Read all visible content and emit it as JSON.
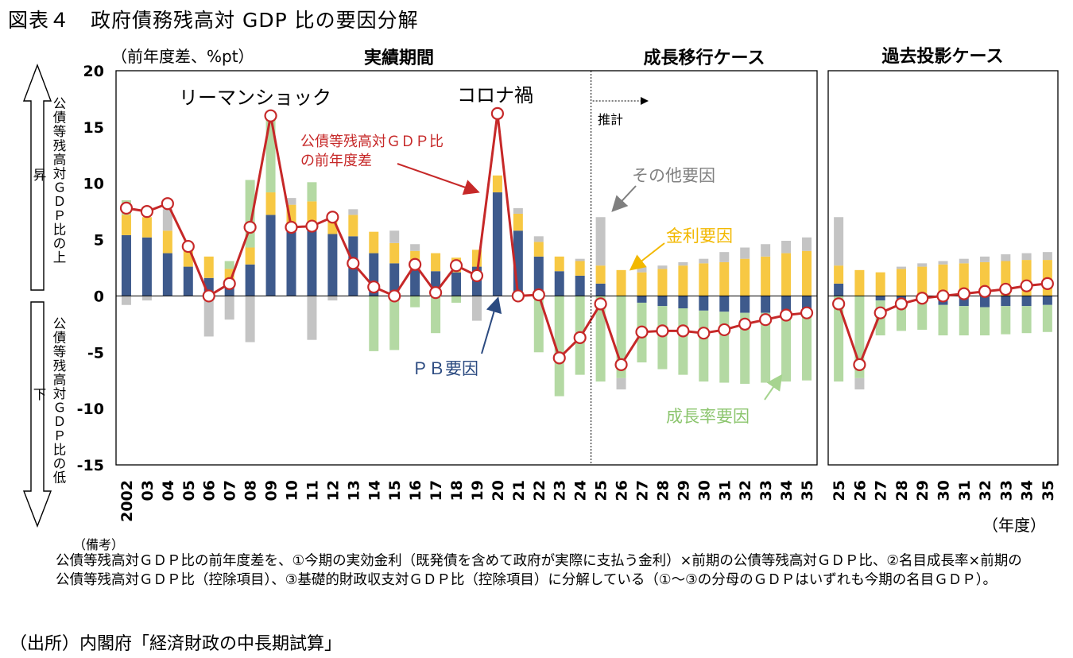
{
  "title": "図表４　政府債務残高対 GDP 比の要因分解",
  "notes_heading": "（備考）",
  "notes": "公債等残高対ＧＤＰ比の前年度差を、①今期の実効金利（既発債を含めて政府が実際に支払う金利）×前期の公債等残高対ＧＤＰ比、②名目成長率×前期の公債等残高対ＧＤＰ比（控除項目）、③基礎的財政収支対ＧＤＰ比（控除項目）に分解している（①～③の分母のＧＤＰはいずれも今期の名目ＧＤＰ）。",
  "source": "（出所）内閣府「経済財政の中長期試算」",
  "colors": {
    "pb": "#3e5a8c",
    "interest": "#f7c843",
    "growth": "#b4d9a3",
    "other": "#c4c4c4",
    "line": "#c62828",
    "annotation_gray": "#7f7f7f"
  },
  "chart_data": {
    "type": "bar",
    "stacked": true,
    "ylabel": "（前年度差、%pt）",
    "xlabel": "（年度）",
    "ylim": [
      -15,
      20
    ],
    "yticks": [
      20,
      15,
      10,
      5,
      0,
      -5,
      -10,
      -15
    ],
    "left_axis_labels": {
      "up": "公債等残高対ＧＤＰ比の上昇",
      "down": "公債等残高対ＧＤＰ比の低下"
    },
    "panels": [
      {
        "categories": [
          "2002",
          "03",
          "04",
          "05",
          "06",
          "07",
          "08",
          "09",
          "10",
          "11",
          "12",
          "13",
          "14",
          "15",
          "16",
          "17",
          "18",
          "19",
          "20",
          "21",
          "22",
          "23",
          "24",
          "25",
          "26",
          "27",
          "28",
          "29",
          "30",
          "31",
          "32",
          "33",
          "34",
          "35"
        ],
        "section_titles": [
          "実績期間",
          "成長移行ケース"
        ],
        "estimate_label": "推計",
        "series": [
          {
            "name": "ＰＢ要因",
            "values": [
              5.4,
              5.2,
              3.8,
              2.6,
              1.6,
              0.9,
              2.8,
              7.2,
              6.2,
              6.1,
              5.5,
              5.3,
              3.8,
              2.9,
              2.3,
              2.2,
              2.1,
              2.6,
              9.2,
              5.8,
              3.5,
              2.2,
              1.8,
              1.1,
              0.0,
              -0.6,
              -0.9,
              -1.1,
              -1.3,
              -1.4,
              -1.5,
              -1.5,
              -1.5,
              -1.4
            ]
          },
          {
            "name": "金利要因",
            "values": [
              1.8,
              1.8,
              2.0,
              1.4,
              1.9,
              1.5,
              1.5,
              2.0,
              1.9,
              2.3,
              1.8,
              1.9,
              1.9,
              1.8,
              1.7,
              1.6,
              1.3,
              1.5,
              1.5,
              1.5,
              1.3,
              1.3,
              1.3,
              1.6,
              2.3,
              2.1,
              2.4,
              2.7,
              2.9,
              3.0,
              3.3,
              3.5,
              3.8,
              4.0
            ]
          },
          {
            "name": "成長率要因",
            "values": [
              1.3,
              0.0,
              0.0,
              0.0,
              0.0,
              0.7,
              6.0,
              6.8,
              0.0,
              1.7,
              0.0,
              0.0,
              -4.9,
              -4.8,
              -1.0,
              -3.3,
              -0.6,
              0.0,
              0.0,
              0.0,
              -5.0,
              -8.9,
              -7.0,
              -7.6,
              -7.3,
              -5.3,
              -5.6,
              -5.9,
              -6.3,
              -6.3,
              -6.3,
              -6.2,
              -6.1,
              -6.1
            ]
          },
          {
            "name": "その他要因",
            "values": [
              -0.8,
              -0.4,
              1.9,
              0.4,
              -3.6,
              -2.1,
              -4.1,
              0.0,
              0.6,
              -3.9,
              -0.4,
              0.5,
              0.0,
              1.1,
              0.6,
              0.0,
              0.0,
              -2.2,
              0.0,
              0.5,
              0.5,
              0.0,
              0.2,
              4.3,
              -1.0,
              0.5,
              0.3,
              0.3,
              0.4,
              0.9,
              1.0,
              1.1,
              1.1,
              1.2
            ]
          }
        ],
        "line": {
          "name": "公債等残高対ＧＤＰ比の前年度差",
          "values": [
            7.8,
            7.5,
            8.2,
            4.4,
            0.0,
            1.1,
            6.1,
            16.0,
            6.1,
            6.2,
            7.0,
            2.9,
            0.8,
            0.0,
            2.8,
            0.3,
            2.7,
            1.8,
            16.2,
            0.0,
            0.1,
            -5.5,
            -3.7,
            -0.7,
            -6.1,
            -3.2,
            -3.1,
            -3.1,
            -3.3,
            -3.0,
            -2.5,
            -2.1,
            -1.7,
            -1.5
          ]
        }
      },
      {
        "categories": [
          "25",
          "26",
          "27",
          "28",
          "29",
          "30",
          "31",
          "32",
          "33",
          "34",
          "35"
        ],
        "section_titles": [
          "過去投影ケース"
        ],
        "series": [
          {
            "name": "ＰＢ要因",
            "values": [
              1.1,
              0.0,
              -0.4,
              -0.3,
              -0.3,
              -0.8,
              -0.9,
              -1.0,
              -0.9,
              -0.9,
              -0.8
            ]
          },
          {
            "name": "金利要因",
            "values": [
              1.6,
              2.3,
              2.1,
              2.4,
              2.6,
              2.8,
              2.9,
              3.0,
              3.1,
              3.2,
              3.2
            ]
          },
          {
            "name": "成長率要因",
            "values": [
              -7.6,
              -7.3,
              -3.1,
              -2.8,
              -2.7,
              -2.7,
              -2.6,
              -2.5,
              -2.5,
              -2.4,
              -2.4
            ]
          },
          {
            "name": "その他要因",
            "values": [
              4.3,
              -1.0,
              0.0,
              0.2,
              0.3,
              0.3,
              0.4,
              0.5,
              0.6,
              0.6,
              0.7
            ]
          }
        ],
        "line": {
          "name": "公債等残高対ＧＤＰ比の前年度差",
          "values": [
            -0.7,
            -6.1,
            -1.5,
            -0.7,
            -0.2,
            0.0,
            0.2,
            0.4,
            0.6,
            0.9,
            1.1
          ]
        }
      }
    ],
    "annotations": {
      "lehman": "リーマンショック",
      "corona": "コロナ禍",
      "line_label": "公債等残高対ＧＤＰ比の前年度差",
      "other_label": "その他要因",
      "interest_label": "金利要因",
      "pb_label": "ＰＢ要因",
      "growth_label": "成長率要因"
    }
  }
}
